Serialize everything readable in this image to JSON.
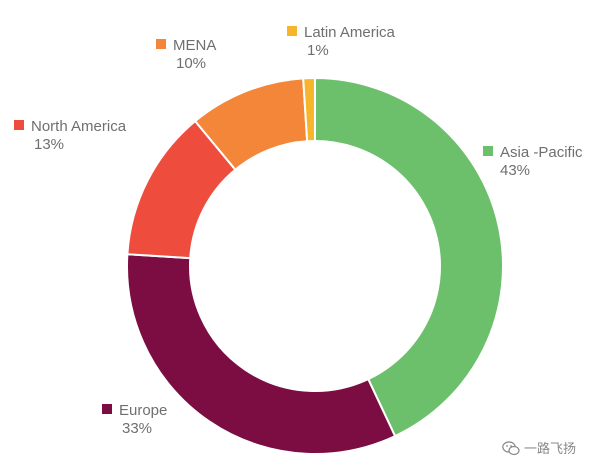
{
  "chart_data": {
    "type": "donut",
    "series": [
      {
        "category": "Asia -Pacific",
        "value": 43,
        "label": "43%",
        "color": "#6cc06b"
      },
      {
        "category": "Europe",
        "value": 33,
        "label": "33%",
        "color": "#7b0d43"
      },
      {
        "category": "North America",
        "value": 13,
        "label": "13%",
        "color": "#ee4c3d"
      },
      {
        "category": "MENA",
        "value": 10,
        "label": "10%",
        "color": "#f38638"
      },
      {
        "category": "Latin America",
        "value": 1,
        "label": "1%",
        "color": "#f7b52c"
      }
    ],
    "start": "top",
    "direction": "clockwise",
    "legend_placement": "labels-around"
  },
  "watermark": {
    "text": "一路飞扬",
    "icon": "wechat-icon"
  }
}
